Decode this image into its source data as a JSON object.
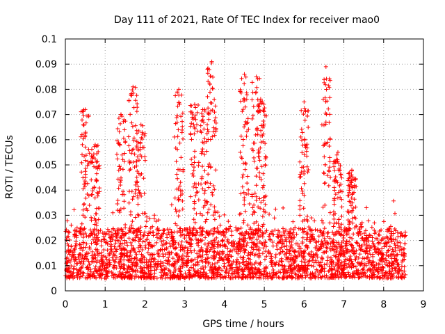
{
  "chart_data": {
    "type": "scatter",
    "title": "Day 111 of 2021, Rate Of TEC Index for receiver mao0",
    "xlabel": "GPS time / hours",
    "ylabel": "ROTI / TECUs",
    "xlim": [
      0,
      9
    ],
    "ylim": [
      0,
      0.1
    ],
    "x_ticks": [
      0,
      1,
      2,
      3,
      4,
      5,
      6,
      7,
      8,
      9
    ],
    "y_ticks": [
      0,
      0.01,
      0.02,
      0.03,
      0.04,
      0.05,
      0.06,
      0.07,
      0.08,
      0.09,
      0.1
    ],
    "x_tick_labels": [
      "0",
      "1",
      "2",
      "3",
      "4",
      "5",
      "6",
      "7",
      "8",
      "9"
    ],
    "y_tick_labels": [
      "0",
      "0.01",
      "0.02",
      "0.03",
      "0.04",
      "0.05",
      "0.06",
      "0.07",
      "0.08",
      "0.09",
      "0.1"
    ],
    "grid": true,
    "marker": "+",
    "color": "#ff0000",
    "series": [
      {
        "name": "ROTI",
        "x_range": [
          0.0,
          8.55
        ],
        "typical_range": [
          0.005,
          0.025
        ],
        "peaks": [
          {
            "x": 0.5,
            "y": 0.072
          },
          {
            "x": 0.75,
            "y": 0.058
          },
          {
            "x": 1.4,
            "y": 0.07
          },
          {
            "x": 1.7,
            "y": 0.081
          },
          {
            "x": 1.9,
            "y": 0.066
          },
          {
            "x": 2.85,
            "y": 0.08
          },
          {
            "x": 3.25,
            "y": 0.074
          },
          {
            "x": 3.5,
            "y": 0.072
          },
          {
            "x": 3.68,
            "y": 0.091
          },
          {
            "x": 4.5,
            "y": 0.086
          },
          {
            "x": 4.8,
            "y": 0.085
          },
          {
            "x": 4.95,
            "y": 0.075
          },
          {
            "x": 6.0,
            "y": 0.075
          },
          {
            "x": 6.55,
            "y": 0.089
          },
          {
            "x": 6.85,
            "y": 0.055
          },
          {
            "x": 7.2,
            "y": 0.048
          }
        ]
      }
    ]
  }
}
